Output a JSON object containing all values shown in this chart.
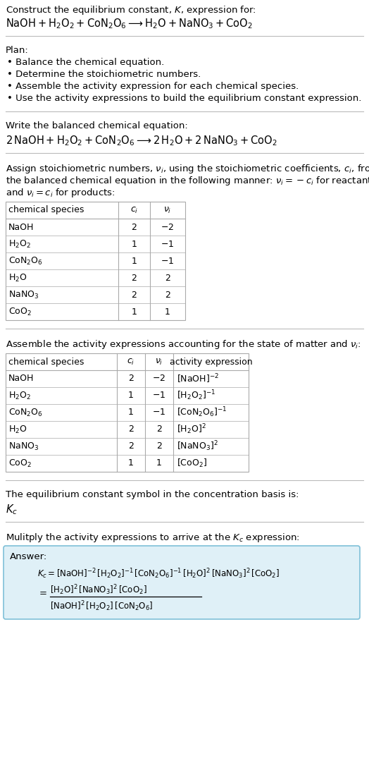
{
  "title_line1": "Construct the equilibrium constant, $K$, expression for:",
  "title_line2": "$\\mathrm{NaOH} + \\mathrm{H_2O_2} + \\mathrm{CoN_2O_6} \\longrightarrow \\mathrm{H_2O} + \\mathrm{NaNO_3} + \\mathrm{CoO_2}$",
  "plan_header": "Plan:",
  "plan_items": [
    "• Balance the chemical equation.",
    "• Determine the stoichiometric numbers.",
    "• Assemble the activity expression for each chemical species.",
    "• Use the activity expressions to build the equilibrium constant expression."
  ],
  "balanced_header": "Write the balanced chemical equation:",
  "balanced_eq": "$2\\,\\mathrm{NaOH} + \\mathrm{H_2O_2} + \\mathrm{CoN_2O_6} \\longrightarrow 2\\,\\mathrm{H_2O} + 2\\,\\mathrm{NaNO_3} + \\mathrm{CoO_2}$",
  "stoich_header1": "Assign stoichiometric numbers, $\\nu_i$, using the stoichiometric coefficients, $c_i$, from",
  "stoich_header2": "the balanced chemical equation in the following manner: $\\nu_i = -c_i$ for reactants",
  "stoich_header3": "and $\\nu_i = c_i$ for products:",
  "stoich_col_headers": [
    "chemical species",
    "$c_i$",
    "$\\nu_i$"
  ],
  "stoich_rows": [
    [
      "NaOH",
      "2",
      "$-2$"
    ],
    [
      "$\\mathrm{H_2O_2}$",
      "1",
      "$-1$"
    ],
    [
      "$\\mathrm{CoN_2O_6}$",
      "1",
      "$-1$"
    ],
    [
      "$\\mathrm{H_2O}$",
      "2",
      "2"
    ],
    [
      "$\\mathrm{NaNO_3}$",
      "2",
      "2"
    ],
    [
      "$\\mathrm{CoO_2}$",
      "1",
      "1"
    ]
  ],
  "activity_header": "Assemble the activity expressions accounting for the state of matter and $\\nu_i$:",
  "activity_col_headers": [
    "chemical species",
    "$c_i$",
    "$\\nu_i$",
    "activity expression"
  ],
  "activity_rows": [
    [
      "NaOH",
      "2",
      "$-2$",
      "$[\\mathrm{NaOH}]^{-2}$"
    ],
    [
      "$\\mathrm{H_2O_2}$",
      "1",
      "$-1$",
      "$[\\mathrm{H_2O_2}]^{-1}$"
    ],
    [
      "$\\mathrm{CoN_2O_6}$",
      "1",
      "$-1$",
      "$[\\mathrm{CoN_2O_6}]^{-1}$"
    ],
    [
      "$\\mathrm{H_2O}$",
      "2",
      "2",
      "$[\\mathrm{H_2O}]^2$"
    ],
    [
      "$\\mathrm{NaNO_3}$",
      "2",
      "2",
      "$[\\mathrm{NaNO_3}]^2$"
    ],
    [
      "$\\mathrm{CoO_2}$",
      "1",
      "1",
      "$[\\mathrm{CoO_2}]$"
    ]
  ],
  "kc_header": "The equilibrium constant symbol in the concentration basis is:",
  "kc_symbol": "$K_c$",
  "multiply_header": "Mulitply the activity expressions to arrive at the $K_c$ expression:",
  "answer_label": "Answer:",
  "answer_kc_line": "$K_c = [\\mathrm{NaOH}]^{-2}\\,[\\mathrm{H_2O_2}]^{-1}\\,[\\mathrm{CoN_2O_6}]^{-1}\\,[\\mathrm{H_2O}]^2\\,[\\mathrm{NaNO_3}]^2\\,[\\mathrm{CoO_2}]$",
  "answer_num": "$[\\mathrm{H_2O}]^2\\,[\\mathrm{NaNO_3}]^2\\,[\\mathrm{CoO_2}]$",
  "answer_den": "$[\\mathrm{NaOH}]^2\\,[\\mathrm{H_2O_2}]\\,[\\mathrm{CoN_2O_6}]$",
  "bg_color": "#ffffff",
  "separator_color": "#bbbbbb",
  "table_border_color": "#aaaaaa",
  "answer_box_bg": "#dff0f7",
  "answer_box_border": "#7fc0d8"
}
